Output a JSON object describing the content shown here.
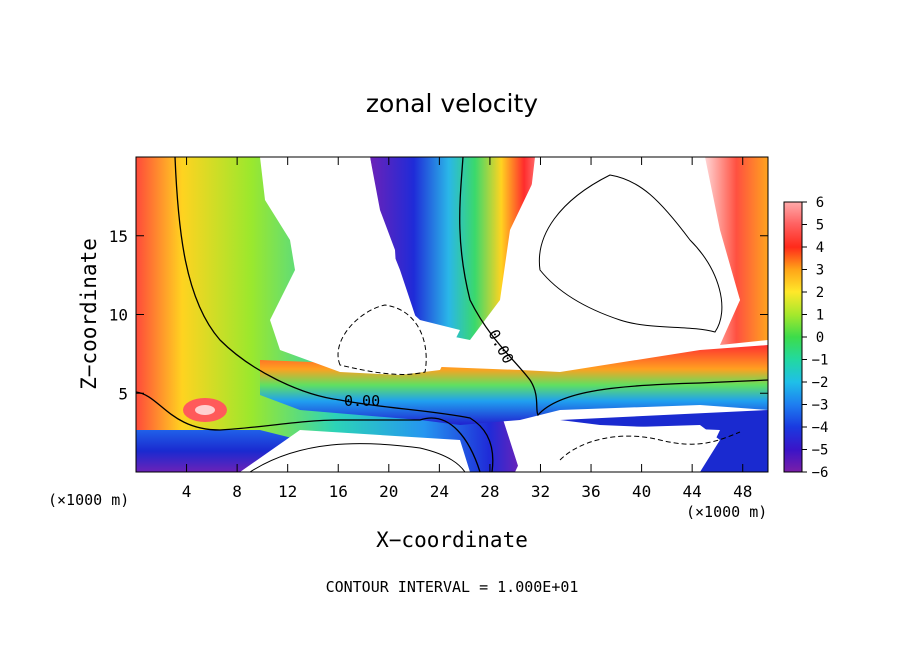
{
  "chart_data": {
    "type": "heatmap",
    "title": "zonal velocity",
    "xlabel": "X−coordinate",
    "ylabel": "Z−coordinate",
    "x_unit_left": "(×1000 m)",
    "x_unit_right": "(×1000 m)",
    "xlim": [
      0,
      50
    ],
    "ylim": [
      0,
      20
    ],
    "x_ticks": [
      4,
      8,
      12,
      16,
      20,
      24,
      28,
      32,
      36,
      40,
      44,
      48
    ],
    "y_ticks": [
      5,
      10,
      15
    ],
    "colorbar": {
      "range": [
        -6,
        6
      ],
      "ticks": [
        "6",
        "5",
        "4",
        "3",
        "2",
        "1",
        "0",
        "−1",
        "−2",
        "−3",
        "−4",
        "−5",
        "−6"
      ]
    },
    "contour_labels": [
      "0.00",
      "0.00"
    ],
    "footer": "CONTOUR INTERVAL = 1.000E+01",
    "grid": false
  }
}
